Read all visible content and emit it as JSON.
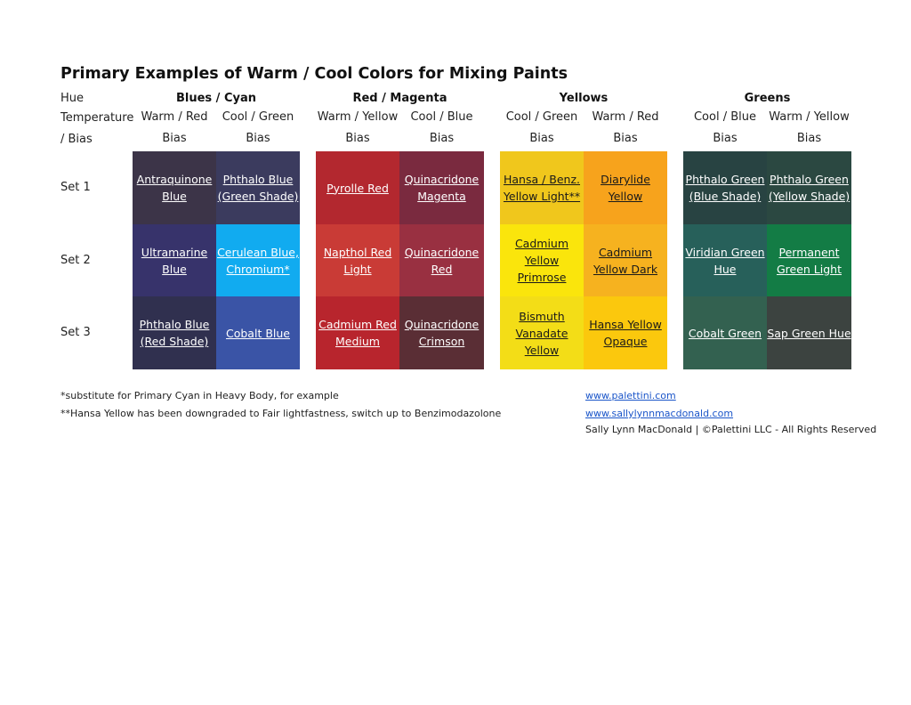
{
  "title": "Primary Examples of Warm / Cool Colors for Mixing Paints",
  "row_labels": {
    "hue": "Hue",
    "temperature": "Temperature",
    "bias": "/ Bias",
    "set1": "Set 1",
    "set2": "Set 2",
    "set3": "Set 3"
  },
  "groups": [
    {
      "name": "Blues / Cyan",
      "sub": [
        [
          "Warm / Red",
          "Bias"
        ],
        [
          "Cool / Green",
          "Bias"
        ]
      ]
    },
    {
      "name": "Red / Magenta",
      "sub": [
        [
          "Warm / Yellow",
          "Bias"
        ],
        [
          "Cool / Blue",
          "Bias"
        ]
      ]
    },
    {
      "name": "Yellows",
      "sub": [
        [
          "Cool / Green",
          "Bias"
        ],
        [
          "Warm / Red",
          "Bias"
        ]
      ]
    },
    {
      "name": "Greens",
      "sub": [
        [
          "Cool / Blue",
          "Bias"
        ],
        [
          "Warm / Yellow",
          "Bias"
        ]
      ]
    }
  ],
  "swatches": {
    "blues": [
      [
        {
          "name": "Antraquinone\nBlue",
          "color": "#3c3448",
          "text": "#ffffff"
        },
        {
          "name": "Phthalo Blue\n(Green Shade)",
          "color": "#3b3b5e",
          "text": "#ffffff"
        }
      ],
      [
        {
          "name": "Ultramarine\nBlue",
          "color": "#37336b",
          "text": "#ffffff"
        },
        {
          "name": "Cerulean Blue,\nChromium*",
          "color": "#11abf0",
          "text": "#ffffff"
        }
      ],
      [
        {
          "name": "Phthalo Blue\n(Red Shade)",
          "color": "#30304f",
          "text": "#ffffff"
        },
        {
          "name": "Cobalt Blue",
          "color": "#3a54a6",
          "text": "#ffffff"
        }
      ]
    ],
    "reds": [
      [
        {
          "name": "Pyrolle Red",
          "color": "#b3282f",
          "text": "#ffffff"
        },
        {
          "name": "Quinacridone\nMagenta",
          "color": "#7a2a3f",
          "text": "#ffffff"
        }
      ],
      [
        {
          "name": "Napthol Red\nLight",
          "color": "#c93b36",
          "text": "#ffffff"
        },
        {
          "name": "Quinacridone\nRed",
          "color": "#993041",
          "text": "#ffffff"
        }
      ],
      [
        {
          "name": "Cadmium Red\nMedium",
          "color": "#b8252d",
          "text": "#ffffff"
        },
        {
          "name": "Quinacridone\nCrimson",
          "color": "#5a2e35",
          "text": "#ffffff"
        }
      ]
    ],
    "yellows": [
      [
        {
          "name": "Hansa / Benz.\nYellow Light**",
          "color": "#f0c71c",
          "text": "#1a1a1a"
        },
        {
          "name": "Diarylide\nYellow",
          "color": "#f7a31c",
          "text": "#1a1a1a"
        }
      ],
      [
        {
          "name": "Cadmium\nYellow\nPrimrose",
          "color": "#fae50c",
          "text": "#1a1a1a"
        },
        {
          "name": "Cadmium\nYellow Dark",
          "color": "#f6b21f",
          "text": "#1a1a1a"
        }
      ],
      [
        {
          "name": "Bismuth\nVanadate\nYellow",
          "color": "#f3dd17",
          "text": "#1a1a1a"
        },
        {
          "name": "Hansa Yellow\nOpaque",
          "color": "#fbc80d",
          "text": "#1a1a1a"
        }
      ]
    ],
    "greens": [
      [
        {
          "name": "Phthalo Green\n(Blue Shade)",
          "color": "#284342",
          "text": "#ffffff"
        },
        {
          "name": "Phthalo Green\n(Yellow Shade)",
          "color": "#2b4841",
          "text": "#ffffff"
        }
      ],
      [
        {
          "name": "Viridian Green\nHue",
          "color": "#27605a",
          "text": "#ffffff"
        },
        {
          "name": "Permanent\nGreen Light",
          "color": "#137c45",
          "text": "#ffffff"
        }
      ],
      [
        {
          "name": "Cobalt Green",
          "color": "#336150",
          "text": "#ffffff"
        },
        {
          "name": "Sap Green Hue",
          "color": "#3c4340",
          "text": "#ffffff"
        }
      ]
    ]
  },
  "footnotes": {
    "note1": "*substitute for Primary Cyan in Heavy Body, for example",
    "note2": "**Hansa Yellow has been downgraded to Fair lightfastness, switch up to Benzimodazolone"
  },
  "links": {
    "site1": "www.palettini.com",
    "site2": "www.sallylynnmacdonald.com"
  },
  "copyright": "Sally Lynn MacDonald | ©Palettini LLC - All Rights Reserved"
}
